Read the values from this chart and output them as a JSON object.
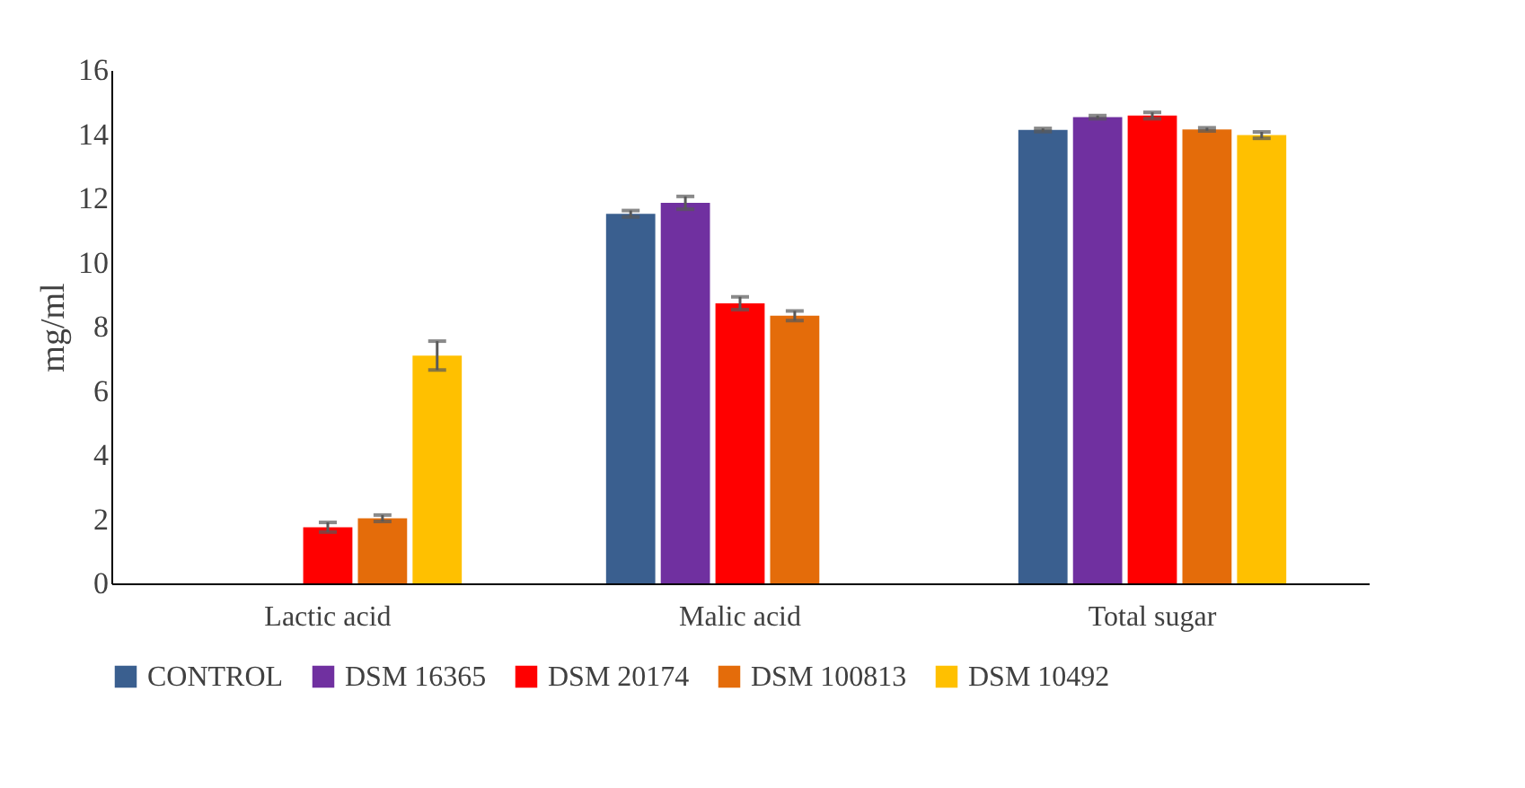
{
  "chart_data": {
    "type": "bar",
    "ylabel": "mg/ml",
    "categories": [
      "Lactic acid",
      "Malic acid",
      "Total sugar"
    ],
    "series": [
      {
        "name": "CONTROL",
        "color": "#3a5f8f",
        "values": [
          0,
          11.52,
          14.13
        ],
        "errors": [
          null,
          0.1,
          0.05
        ]
      },
      {
        "name": "DSM 16365",
        "color": "#7030a0",
        "values": [
          0,
          11.86,
          14.53
        ],
        "errors": [
          null,
          0.2,
          0.05
        ]
      },
      {
        "name": "DSM 20174",
        "color": "#ff0000",
        "values": [
          1.75,
          8.73,
          14.58
        ],
        "errors": [
          0.15,
          0.2,
          0.1
        ]
      },
      {
        "name": "DSM 100813",
        "color": "#e46c0a",
        "values": [
          2.03,
          8.34,
          14.15
        ],
        "errors": [
          0.1,
          0.15,
          0.05
        ]
      },
      {
        "name": "DSM 10492",
        "color": "#ffc000",
        "values": [
          7.1,
          0,
          13.97
        ],
        "errors": [
          0.45,
          null,
          0.1
        ]
      }
    ],
    "ylim": [
      0,
      16
    ],
    "yticks": [
      0,
      2,
      4,
      6,
      8,
      10,
      12,
      14,
      16
    ],
    "grid": false,
    "legend": "bottom"
  }
}
